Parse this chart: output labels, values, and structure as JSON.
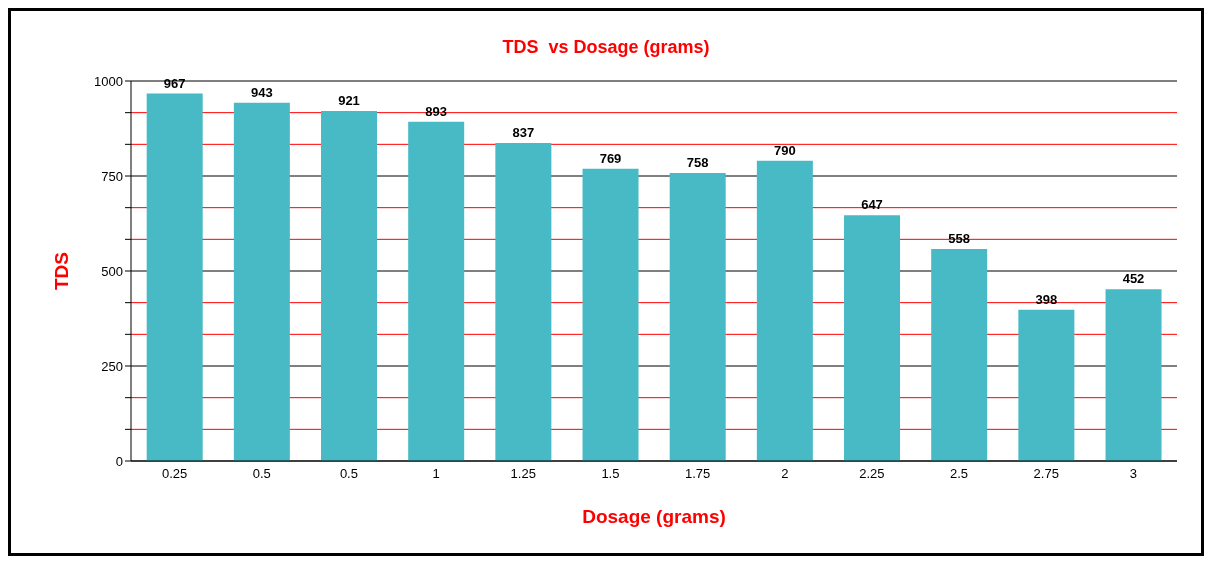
{
  "chart_data": {
    "type": "bar",
    "title": "TDS  vs Dosage (grams)",
    "xlabel": "Dosage (grams)",
    "ylabel": "TDS",
    "categories": [
      "0.25",
      "0.5",
      "0.5",
      "1",
      "1.25",
      "1.5",
      "1.75",
      "2",
      "2.25",
      "2.5",
      "2.75",
      "3"
    ],
    "values": [
      967,
      943,
      921,
      893,
      837,
      769,
      758,
      790,
      647,
      558,
      398,
      452
    ],
    "color": "#47bac5",
    "ylim": [
      0,
      1000
    ],
    "yticks": [
      0,
      {
        "value": 83.33,
        "label": null
      },
      {
        "value": 166.67,
        "label": null
      },
      250,
      {
        "value": 333.33,
        "label": null
      },
      {
        "value": 416.67,
        "label": null
      },
      500,
      {
        "value": 583.33,
        "label": null
      },
      {
        "value": 666.67,
        "label": null
      },
      750,
      {
        "value": 833.33,
        "label": null
      },
      {
        "value": 916.67,
        "label": null
      },
      1000
    ],
    "grid": true,
    "data_labels": true
  }
}
